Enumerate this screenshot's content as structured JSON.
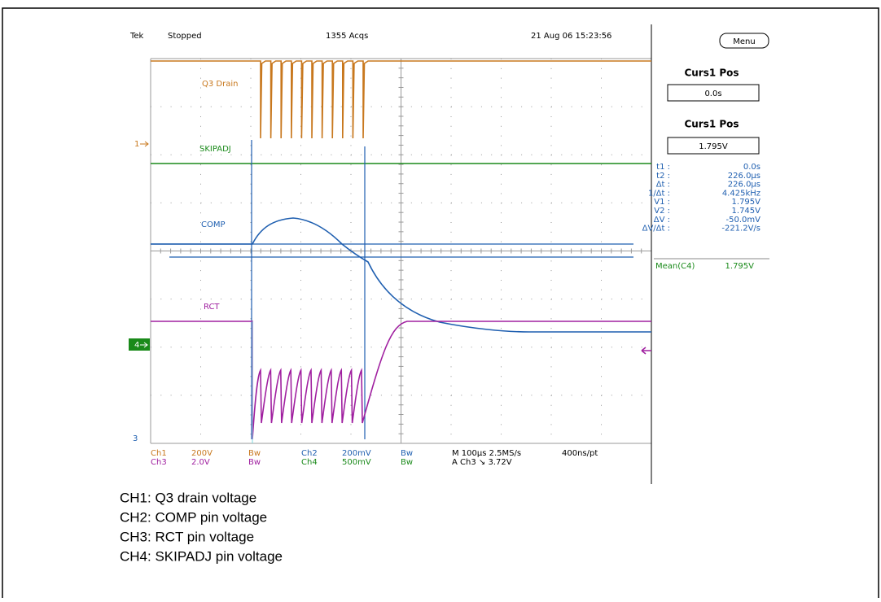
{
  "header": {
    "brand": "Tek",
    "status": "Stopped",
    "acquisitions": "1355 Acqs",
    "datetime": "21 Aug 06 15:23:56"
  },
  "menu": "Menu",
  "cursors": [
    {
      "label": "Curs1 Pos",
      "value": "0.0s"
    },
    {
      "label": "Curs1 Pos",
      "value": "1.795V"
    }
  ],
  "readouts": [
    [
      "t1 :",
      "0.0s"
    ],
    [
      "t2 :",
      "226.0µs"
    ],
    [
      "Δt :",
      "226.0µs"
    ],
    [
      "1/Δt :",
      "4.425kHz"
    ],
    [
      "V1 :",
      "1.795V"
    ],
    [
      "V2 :",
      "1.745V"
    ],
    [
      "ΔV :",
      "-50.0mV"
    ],
    [
      "ΔV/Δt :",
      "-221.2V/s"
    ]
  ],
  "mean": {
    "label": "Mean(C4)",
    "value": "1.795V"
  },
  "traces": [
    "Q3 Drain",
    "SKIPADJ",
    "COMP",
    "RCT"
  ],
  "markers": [
    "1",
    "4",
    "3"
  ],
  "settings": [
    [
      "Ch1",
      "200V",
      "Bw",
      "Ch2",
      "200mV",
      "Bw",
      "M 100µs 2.5MS/s",
      "400ns/pt"
    ],
    [
      "Ch3",
      "2.0V",
      "Bw",
      "Ch4",
      "500mV",
      "Bw",
      "A  Ch3 ↘ 3.72V"
    ]
  ],
  "legend": [
    "CH1: Q3 drain voltage",
    "CH2: COMP pin voltage",
    "CH3: RCT pin voltage",
    "CH4: SKIPADJ pin voltage"
  ]
}
